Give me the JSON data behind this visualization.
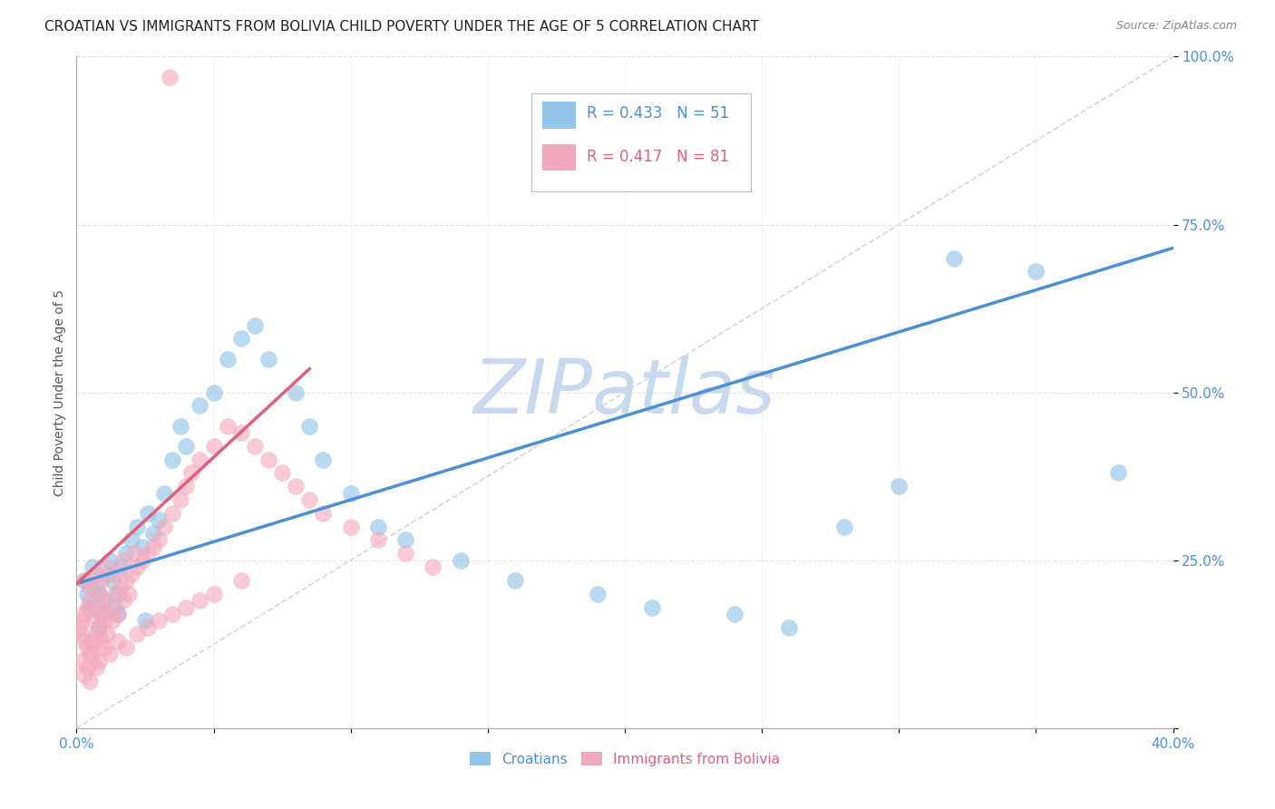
{
  "title": "CROATIAN VS IMMIGRANTS FROM BOLIVIA CHILD POVERTY UNDER THE AGE OF 5 CORRELATION CHART",
  "source": "Source: ZipAtlas.com",
  "ylabel": "Child Poverty Under the Age of 5",
  "xlim": [
    0.0,
    0.4
  ],
  "ylim": [
    0.0,
    1.0
  ],
  "xticks": [
    0.0,
    0.05,
    0.1,
    0.15,
    0.2,
    0.25,
    0.3,
    0.35,
    0.4
  ],
  "xtick_labels_show": [
    "0.0%",
    "",
    "",
    "",
    "",
    "",
    "",
    "",
    "40.0%"
  ],
  "yticks": [
    0.0,
    0.25,
    0.5,
    0.75,
    1.0
  ],
  "ytick_labels": [
    "",
    "25.0%",
    "50.0%",
    "75.0%",
    "100.0%"
  ],
  "legend_r_blue": "R = 0.433",
  "legend_n_blue": "N = 51",
  "legend_r_pink": "R = 0.417",
  "legend_n_pink": "N = 81",
  "blue_color": "#92C5E8",
  "pink_color": "#F2A8BC",
  "blue_line_color": "#4A90D9",
  "pink_line_color": "#E0607A",
  "ref_line_color": "#CCCCCC",
  "watermark_color": "#C8D8EE",
  "background_color": "#FFFFFF",
  "blue_trend_x": [
    0.0,
    0.4
  ],
  "blue_trend_y": [
    0.215,
    0.715
  ],
  "pink_trend_x": [
    0.0,
    0.085
  ],
  "pink_trend_y": [
    0.215,
    0.535
  ],
  "blue_scatter_x": [
    0.003,
    0.004,
    0.005,
    0.006,
    0.007,
    0.008,
    0.009,
    0.01,
    0.011,
    0.012,
    0.013,
    0.014,
    0.015,
    0.016,
    0.018,
    0.02,
    0.022,
    0.024,
    0.026,
    0.028,
    0.03,
    0.032,
    0.035,
    0.038,
    0.04,
    0.045,
    0.05,
    0.055,
    0.06,
    0.065,
    0.07,
    0.08,
    0.085,
    0.09,
    0.1,
    0.11,
    0.12,
    0.14,
    0.16,
    0.19,
    0.21,
    0.24,
    0.26,
    0.28,
    0.3,
    0.32,
    0.35,
    0.38,
    0.008,
    0.015,
    0.025
  ],
  "blue_scatter_y": [
    0.22,
    0.2,
    0.18,
    0.24,
    0.21,
    0.2,
    0.17,
    0.19,
    0.23,
    0.25,
    0.22,
    0.18,
    0.2,
    0.24,
    0.26,
    0.28,
    0.3,
    0.27,
    0.32,
    0.29,
    0.31,
    0.35,
    0.4,
    0.45,
    0.42,
    0.48,
    0.5,
    0.55,
    0.58,
    0.6,
    0.55,
    0.5,
    0.45,
    0.4,
    0.35,
    0.3,
    0.28,
    0.25,
    0.22,
    0.2,
    0.18,
    0.17,
    0.15,
    0.3,
    0.36,
    0.7,
    0.68,
    0.38,
    0.15,
    0.17,
    0.16
  ],
  "pink_scatter_x": [
    0.001,
    0.002,
    0.002,
    0.003,
    0.003,
    0.004,
    0.004,
    0.005,
    0.005,
    0.006,
    0.006,
    0.007,
    0.007,
    0.008,
    0.008,
    0.009,
    0.009,
    0.01,
    0.01,
    0.011,
    0.012,
    0.013,
    0.014,
    0.015,
    0.016,
    0.017,
    0.018,
    0.019,
    0.02,
    0.022,
    0.024,
    0.026,
    0.028,
    0.03,
    0.032,
    0.035,
    0.038,
    0.04,
    0.042,
    0.045,
    0.05,
    0.055,
    0.06,
    0.065,
    0.07,
    0.075,
    0.08,
    0.085,
    0.09,
    0.1,
    0.11,
    0.12,
    0.13,
    0.003,
    0.005,
    0.007,
    0.002,
    0.004,
    0.006,
    0.008,
    0.01,
    0.012,
    0.015,
    0.018,
    0.022,
    0.026,
    0.03,
    0.035,
    0.04,
    0.045,
    0.05,
    0.06,
    0.003,
    0.005,
    0.007,
    0.009,
    0.011,
    0.014,
    0.017,
    0.021,
    0.034
  ],
  "pink_scatter_y": [
    0.15,
    0.14,
    0.16,
    0.13,
    0.17,
    0.12,
    0.18,
    0.11,
    0.19,
    0.13,
    0.16,
    0.14,
    0.18,
    0.15,
    0.2,
    0.13,
    0.17,
    0.16,
    0.19,
    0.14,
    0.18,
    0.16,
    0.2,
    0.17,
    0.21,
    0.19,
    0.22,
    0.2,
    0.23,
    0.24,
    0.25,
    0.26,
    0.27,
    0.28,
    0.3,
    0.32,
    0.34,
    0.36,
    0.38,
    0.4,
    0.42,
    0.45,
    0.44,
    0.42,
    0.4,
    0.38,
    0.36,
    0.34,
    0.32,
    0.3,
    0.28,
    0.26,
    0.24,
    0.08,
    0.07,
    0.09,
    0.1,
    0.09,
    0.11,
    0.1,
    0.12,
    0.11,
    0.13,
    0.12,
    0.14,
    0.15,
    0.16,
    0.17,
    0.18,
    0.19,
    0.2,
    0.22,
    0.22,
    0.21,
    0.23,
    0.22,
    0.24,
    0.23,
    0.25,
    0.26,
    0.97
  ]
}
